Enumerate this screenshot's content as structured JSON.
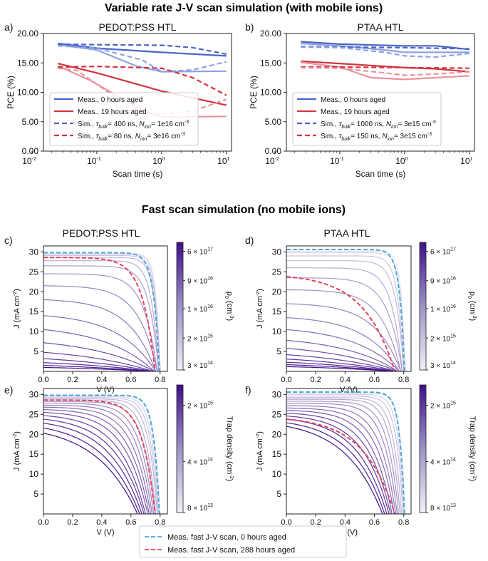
{
  "titles": {
    "top": "Variable rate J-V scan simulation (with mobile ions)",
    "bottom": "Fast scan simulation (no mobile ions)"
  },
  "colors": {
    "blue": "#4a64c8",
    "blue_light": "#8fa2df",
    "red": "#d2333f",
    "red_light": "#e9929a",
    "dash_blue": "#4aa7d8",
    "dash_red": "#e0445a",
    "cmap_light": "#f1f0f6",
    "cmap_dark": "#3f0f8a"
  },
  "chart_data": [
    {
      "id": "a",
      "panel_label": "a)",
      "type": "line",
      "title": "PEDOT:PSS HTL",
      "xlabel": "Scan time (s)",
      "ylabel": "PCE (%)",
      "xscale": "log",
      "xlim": [
        0.015,
        12
      ],
      "ylim": [
        0,
        20
      ],
      "yticks": [
        "0.00",
        "5.00",
        "10.00",
        "15.00",
        "20.00"
      ],
      "xticks": [
        {
          "v": 0.01,
          "b": "10",
          "e": "-2"
        },
        {
          "v": 0.1,
          "b": "10",
          "e": "-1"
        },
        {
          "v": 1,
          "b": "10",
          "e": "0"
        },
        {
          "v": 10,
          "b": "10",
          "e": "1"
        }
      ],
      "series": [
        {
          "name": "meas0_rev",
          "color": "blue",
          "dash": false,
          "width": 2.2,
          "x": [
            0.025,
            0.1,
            1,
            10
          ],
          "y": [
            18.3,
            17.5,
            16.8,
            16.2
          ]
        },
        {
          "name": "meas0_fwd",
          "color": "blue_light",
          "dash": false,
          "width": 2.2,
          "x": [
            0.025,
            0.1,
            0.4,
            1,
            10
          ],
          "y": [
            18.1,
            17.2,
            14.5,
            13.5,
            13.6
          ]
        },
        {
          "name": "meas19_rev",
          "color": "red",
          "dash": false,
          "width": 2.2,
          "x": [
            0.025,
            0.1,
            1,
            10
          ],
          "y": [
            14.9,
            13.3,
            10.2,
            7.8
          ]
        },
        {
          "name": "meas19_fwd",
          "color": "red_light",
          "dash": false,
          "width": 2.2,
          "x": [
            0.025,
            0.08,
            0.5,
            1,
            10
          ],
          "y": [
            14.5,
            12.0,
            7.0,
            5.8,
            5.9
          ]
        },
        {
          "name": "sim0_rev",
          "color": "blue",
          "dash": true,
          "width": 2.2,
          "x": [
            0.025,
            0.1,
            1,
            3,
            10
          ],
          "y": [
            18.2,
            18.1,
            18.0,
            17.6,
            16.5
          ]
        },
        {
          "name": "sim0_fwd",
          "color": "blue_light",
          "dash": true,
          "width": 2.2,
          "x": [
            0.025,
            0.1,
            0.5,
            1,
            3,
            10
          ],
          "y": [
            17.9,
            17.5,
            15.5,
            13.5,
            13.8,
            15.2
          ]
        },
        {
          "name": "sim19_rev",
          "color": "red",
          "dash": true,
          "width": 2.2,
          "x": [
            0.025,
            0.1,
            1,
            3,
            10
          ],
          "y": [
            14.3,
            14.4,
            14.1,
            12.5,
            9.5
          ]
        },
        {
          "name": "sim19_fwd",
          "color": "red_light",
          "dash": true,
          "width": 2.2,
          "x": [
            0.025,
            0.05,
            0.15,
            0.4,
            1,
            3,
            10
          ],
          "y": [
            14.1,
            13.7,
            10.0,
            6.8,
            6.3,
            6.8,
            8.8
          ]
        }
      ],
      "legend": {
        "position": "lower-left",
        "entries": [
          {
            "label": "Meas., 0 hours aged",
            "color": "blue",
            "dash": false
          },
          {
            "label": "Meas., 19 hours aged",
            "color": "red",
            "dash": false
          },
          {
            "label_parts": [
              "Sim., ",
              "τ",
              "bulk",
              "= 400 ns, ",
              "N",
              "ion",
              "= 1e16 cm",
              "-3"
            ],
            "color": "blue",
            "dash": true
          },
          {
            "label_parts": [
              "Sim., ",
              "τ",
              "bulk",
              "= 80 ns, ",
              "N",
              "ion",
              "= 3e16 cm",
              "-3"
            ],
            "color": "red",
            "dash": true
          }
        ]
      }
    },
    {
      "id": "b",
      "panel_label": "b)",
      "type": "line",
      "title": "PTAA HTL",
      "xlabel": "Scan time (s)",
      "ylabel": "PCE (%)",
      "xscale": "log",
      "xlim": [
        0.015,
        12
      ],
      "ylim": [
        0,
        20
      ],
      "yticks": [
        "0.00",
        "5.00",
        "10.00",
        "15.00",
        "20.00"
      ],
      "xticks": [
        {
          "v": 0.01,
          "b": "10",
          "e": "-2"
        },
        {
          "v": 0.1,
          "b": "10",
          "e": "-1"
        },
        {
          "v": 1,
          "b": "10",
          "e": "0"
        },
        {
          "v": 10,
          "b": "10",
          "e": "1"
        }
      ],
      "series": [
        {
          "name": "meas0_rev",
          "color": "blue",
          "dash": false,
          "width": 2.2,
          "x": [
            0.025,
            0.1,
            1,
            3,
            10
          ],
          "y": [
            18.6,
            18.2,
            17.9,
            17.9,
            17.3
          ]
        },
        {
          "name": "meas0_fwd",
          "color": "blue_light",
          "dash": false,
          "width": 2.2,
          "x": [
            0.025,
            0.1,
            0.5,
            1,
            10
          ],
          "y": [
            18.3,
            17.9,
            17.2,
            16.8,
            16.8
          ]
        },
        {
          "name": "meas19_rev",
          "color": "red",
          "dash": false,
          "width": 2.2,
          "x": [
            0.025,
            0.1,
            1,
            3,
            10
          ],
          "y": [
            15.3,
            14.9,
            14.2,
            14.0,
            13.5
          ]
        },
        {
          "name": "meas19_fwd",
          "color": "red_light",
          "dash": false,
          "width": 2.2,
          "x": [
            0.025,
            0.1,
            0.3,
            1,
            10
          ],
          "y": [
            15.1,
            14.3,
            12.5,
            12.2,
            12.8
          ]
        },
        {
          "name": "sim0_rev",
          "color": "blue",
          "dash": true,
          "width": 2.2,
          "x": [
            0.025,
            0.1,
            1,
            10
          ],
          "y": [
            17.8,
            17.7,
            17.6,
            17.4
          ]
        },
        {
          "name": "sim0_fwd",
          "color": "blue_light",
          "dash": true,
          "width": 2.2,
          "x": [
            0.025,
            0.1,
            0.5,
            1,
            3,
            10
          ],
          "y": [
            17.7,
            17.6,
            16.8,
            16.2,
            16.0,
            16.6
          ]
        },
        {
          "name": "sim19_rev",
          "color": "red",
          "dash": true,
          "width": 2.2,
          "x": [
            0.025,
            0.1,
            1,
            10
          ],
          "y": [
            14.3,
            14.3,
            14.2,
            14.1
          ]
        },
        {
          "name": "sim19_fwd",
          "color": "red_light",
          "dash": true,
          "width": 2.2,
          "x": [
            0.025,
            0.1,
            0.5,
            1,
            3,
            10
          ],
          "y": [
            14.2,
            14.1,
            13.3,
            12.9,
            13.1,
            13.5
          ]
        }
      ],
      "legend": {
        "position": "lower-left",
        "entries": [
          {
            "label": "Meas., 0 hours aged",
            "color": "blue",
            "dash": false
          },
          {
            "label": "Meas., 19 hours aged",
            "color": "red",
            "dash": false
          },
          {
            "label_parts": [
              "Sim., ",
              "τ",
              "bulk",
              "= 1000 ns, ",
              "N",
              "ion",
              "= 3e15 cm",
              "-3"
            ],
            "color": "blue",
            "dash": true
          },
          {
            "label_parts": [
              "Sim., ",
              "τ",
              "bulk",
              "= 150 ns, ",
              "N",
              "ion",
              "= 3e15 cm",
              "-3"
            ],
            "color": "red",
            "dash": true
          }
        ]
      }
    },
    {
      "id": "c",
      "panel_label": "c)",
      "type": "line",
      "title": "PEDOT:PSS HTL",
      "xlabel": "V (V)",
      "ylabel_parts": [
        "J (mA cm",
        "-2",
        ")"
      ],
      "xlim": [
        0,
        0.85
      ],
      "ylim": [
        0,
        31.5
      ],
      "xticks": [
        0,
        0.2,
        0.4,
        0.6,
        0.8
      ],
      "yticks": [
        5,
        10,
        15,
        20,
        25,
        30
      ],
      "family": {
        "kind": "doping",
        "jsc": [
          29.6,
          29.4,
          29.1,
          28.6,
          27.8,
          26.5,
          24.5,
          21.5,
          18.0,
          14.0,
          10.5,
          7.2,
          4.8,
          3.2,
          2.2,
          1.5,
          1.0
        ],
        "voc": [
          0.8,
          0.8,
          0.8,
          0.8,
          0.79,
          0.79,
          0.78,
          0.78,
          0.77,
          0.77,
          0.76,
          0.76,
          0.75,
          0.75,
          0.74,
          0.74,
          0.73
        ],
        "k": [
          28,
          26,
          23,
          20,
          16,
          12,
          8.5,
          6,
          4.2,
          3.0,
          2.2,
          1.7,
          1.4,
          1.2,
          1.1,
          1.0,
          1.0
        ]
      },
      "dashed": [
        {
          "name": "meas_0h",
          "color": "dash_blue",
          "jsc": 29.8,
          "voc": 0.795,
          "k": 20
        },
        {
          "name": "meas_288h",
          "color": "dash_red",
          "jsc": 28.6,
          "voc": 0.765,
          "k": 9
        }
      ],
      "colorbar": {
        "label": "p",
        "label_sub": "0",
        "label_tail": " (cm",
        "label_sup": "-3",
        "label_end": ")",
        "ticks": [
          {
            "b": "6 × 10",
            "e": "17"
          },
          {
            "b": "9 × 10",
            "e": "16"
          },
          {
            "b": "1 × 10",
            "e": "16"
          },
          {
            "b": "2 × 10",
            "e": "15"
          },
          {
            "b": "3 × 10",
            "e": "14"
          }
        ]
      }
    },
    {
      "id": "d",
      "panel_label": "d)",
      "type": "line",
      "title": "PTAA HTL",
      "xlabel": "V (V)",
      "ylabel_parts": [
        "J (mA cm",
        "-2",
        ")"
      ],
      "xlim": [
        0,
        0.85
      ],
      "ylim": [
        0,
        31.5
      ],
      "xticks": [
        0,
        0.2,
        0.4,
        0.6,
        0.8
      ],
      "yticks": [
        5,
        10,
        15,
        20,
        25,
        30
      ],
      "family": {
        "kind": "doping",
        "jsc": [
          30.2,
          29.8,
          29.0,
          27.8,
          26.0,
          23.5,
          20.5,
          17.0,
          13.5,
          10.5,
          7.8,
          5.8,
          4.2,
          3.1,
          2.3,
          1.7,
          1.2
        ],
        "voc": [
          0.81,
          0.81,
          0.8,
          0.8,
          0.79,
          0.79,
          0.78,
          0.78,
          0.77,
          0.77,
          0.76,
          0.76,
          0.75,
          0.75,
          0.74,
          0.74,
          0.73
        ],
        "k": [
          30,
          25,
          20,
          15,
          11,
          8,
          6,
          4.4,
          3.3,
          2.5,
          2.0,
          1.6,
          1.4,
          1.2,
          1.1,
          1.0,
          1.0
        ]
      },
      "dashed": [
        {
          "name": "meas_0h",
          "color": "dash_blue",
          "jsc": 30.6,
          "voc": 0.805,
          "k": 24
        },
        {
          "name": "meas_288h",
          "color": "dash_red",
          "jsc": 23.8,
          "voc": 0.74,
          "k": 3.5
        }
      ],
      "colorbar": {
        "label": "p",
        "label_sub": "0",
        "label_tail": " (cm",
        "label_sup": "-3",
        "label_end": ")",
        "ticks": [
          {
            "b": "6 × 10",
            "e": "17"
          },
          {
            "b": "9 × 10",
            "e": "16"
          },
          {
            "b": "1 × 10",
            "e": "16"
          },
          {
            "b": "2 × 10",
            "e": "15"
          },
          {
            "b": "3 × 10",
            "e": "14"
          }
        ]
      }
    },
    {
      "id": "e",
      "panel_label": "e)",
      "type": "line",
      "title": "",
      "xlabel": "V (V)",
      "ylabel_parts": [
        "J (mA cm",
        "-2",
        ")"
      ],
      "xlim": [
        0,
        0.85
      ],
      "ylim": [
        0,
        31.5
      ],
      "xticks": [
        0,
        0.2,
        0.4,
        0.6,
        0.8
      ],
      "yticks": [
        5,
        10,
        15,
        20,
        25,
        30
      ],
      "family": {
        "kind": "trap",
        "jsc": [
          29.8,
          29.5,
          29.2,
          28.9,
          28.6,
          28.2,
          27.8,
          27.3,
          26.8,
          26.2,
          25.5,
          24.7,
          23.8,
          22.8,
          21.6,
          20.3
        ],
        "voc": [
          0.8,
          0.79,
          0.785,
          0.78,
          0.77,
          0.765,
          0.755,
          0.745,
          0.735,
          0.725,
          0.715,
          0.7,
          0.69,
          0.675,
          0.66,
          0.645
        ],
        "k": [
          20,
          17,
          15,
          13,
          11,
          9.5,
          8,
          7,
          6,
          5.2,
          4.5,
          3.9,
          3.4,
          3.0,
          2.6,
          2.3
        ]
      },
      "dashed": [
        {
          "name": "meas_0h",
          "color": "dash_blue",
          "jsc": 29.8,
          "voc": 0.795,
          "k": 20
        },
        {
          "name": "meas_288h",
          "color": "dash_red",
          "jsc": 28.6,
          "voc": 0.765,
          "k": 9
        }
      ],
      "colorbar": {
        "label": "Trap density (cm",
        "label_sup": "-3",
        "label_end": ")",
        "ticks": [
          {
            "b": "2 × 10",
            "e": "15"
          },
          {
            "b": "4 × 10",
            "e": "14"
          },
          {
            "b": "8 × 10",
            "e": "13"
          }
        ]
      }
    },
    {
      "id": "f",
      "panel_label": "f)",
      "type": "line",
      "title": "",
      "xlabel": "V (V)",
      "ylabel_parts": [
        "J (mA cm",
        "-2",
        ")"
      ],
      "xlim": [
        0,
        0.85
      ],
      "ylim": [
        0,
        31.5
      ],
      "xticks": [
        0,
        0.2,
        0.4,
        0.6,
        0.8
      ],
      "yticks": [
        5,
        10,
        15,
        20,
        25,
        30
      ],
      "family": {
        "kind": "trap",
        "jsc": [
          30.3,
          30.0,
          29.6,
          29.2,
          28.8,
          28.3,
          27.8,
          27.2,
          26.6,
          26.0,
          25.3,
          24.6,
          23.8,
          22.9,
          22.0
        ],
        "voc": [
          0.81,
          0.8,
          0.795,
          0.785,
          0.775,
          0.765,
          0.755,
          0.745,
          0.735,
          0.72,
          0.71,
          0.7,
          0.685,
          0.67,
          0.655
        ],
        "k": [
          24,
          20,
          17,
          14,
          12,
          10,
          8.5,
          7,
          6,
          5.2,
          4.5,
          3.9,
          3.4,
          3.0,
          2.6
        ]
      },
      "dashed": [
        {
          "name": "meas_0h",
          "color": "dash_blue",
          "jsc": 30.6,
          "voc": 0.805,
          "k": 24
        },
        {
          "name": "meas_288h",
          "color": "dash_red",
          "jsc": 23.8,
          "voc": 0.74,
          "k": 3.5
        }
      ],
      "colorbar": {
        "label": "Trap density (cm",
        "label_sup": "-3",
        "label_end": ")",
        "ticks": [
          {
            "b": "2 × 10",
            "e": "15"
          },
          {
            "b": "4 × 10",
            "e": "14"
          },
          {
            "b": "8 × 10",
            "e": "13"
          }
        ]
      }
    }
  ],
  "bottom_legend": {
    "entries": [
      {
        "label": "Meas. fast J-V scan, 0 hours aged",
        "color": "dash_blue"
      },
      {
        "label": "Meas. fast J-V scan, 288 hours aged",
        "color": "dash_red"
      }
    ]
  }
}
